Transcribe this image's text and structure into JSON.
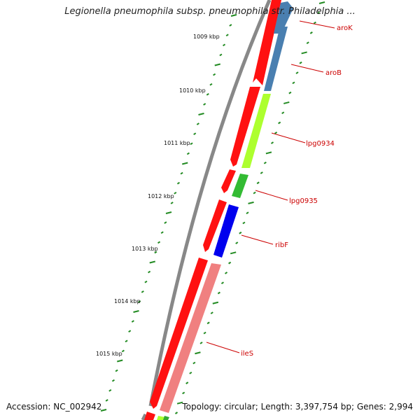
{
  "title": "Legionella pneumophila subsp. pneumophila str. Philadelphia ...",
  "accession_text": "Accession: NC_002942",
  "summary_text": "Topology: circular; Length: 3,397,754 bp; Genes: 2,994",
  "ticks": [
    {
      "label": "1009 kbp"
    },
    {
      "label": "1010 kbp"
    },
    {
      "label": "1011 kbp"
    },
    {
      "label": "1012 kbp"
    },
    {
      "label": "1013 kbp"
    },
    {
      "label": "1014 kbp"
    },
    {
      "label": "1015 kbp"
    }
  ],
  "genes": [
    {
      "name": "aroK",
      "color": "#4a7fb0"
    },
    {
      "name": "aroB",
      "color": "#4a7fb0"
    },
    {
      "name": "lpg0934",
      "color": "#adff2f"
    },
    {
      "name": "lpg0935",
      "color": "#33bb33"
    },
    {
      "name": "ribF",
      "color": "#0000ee"
    },
    {
      "name": "ileS",
      "color": "#f08080"
    }
  ],
  "colors": {
    "cds_strand": "#ff0000",
    "backbone": "#7a7a7a",
    "tick_marks": "#228b22",
    "label_text": "#cc0000"
  }
}
